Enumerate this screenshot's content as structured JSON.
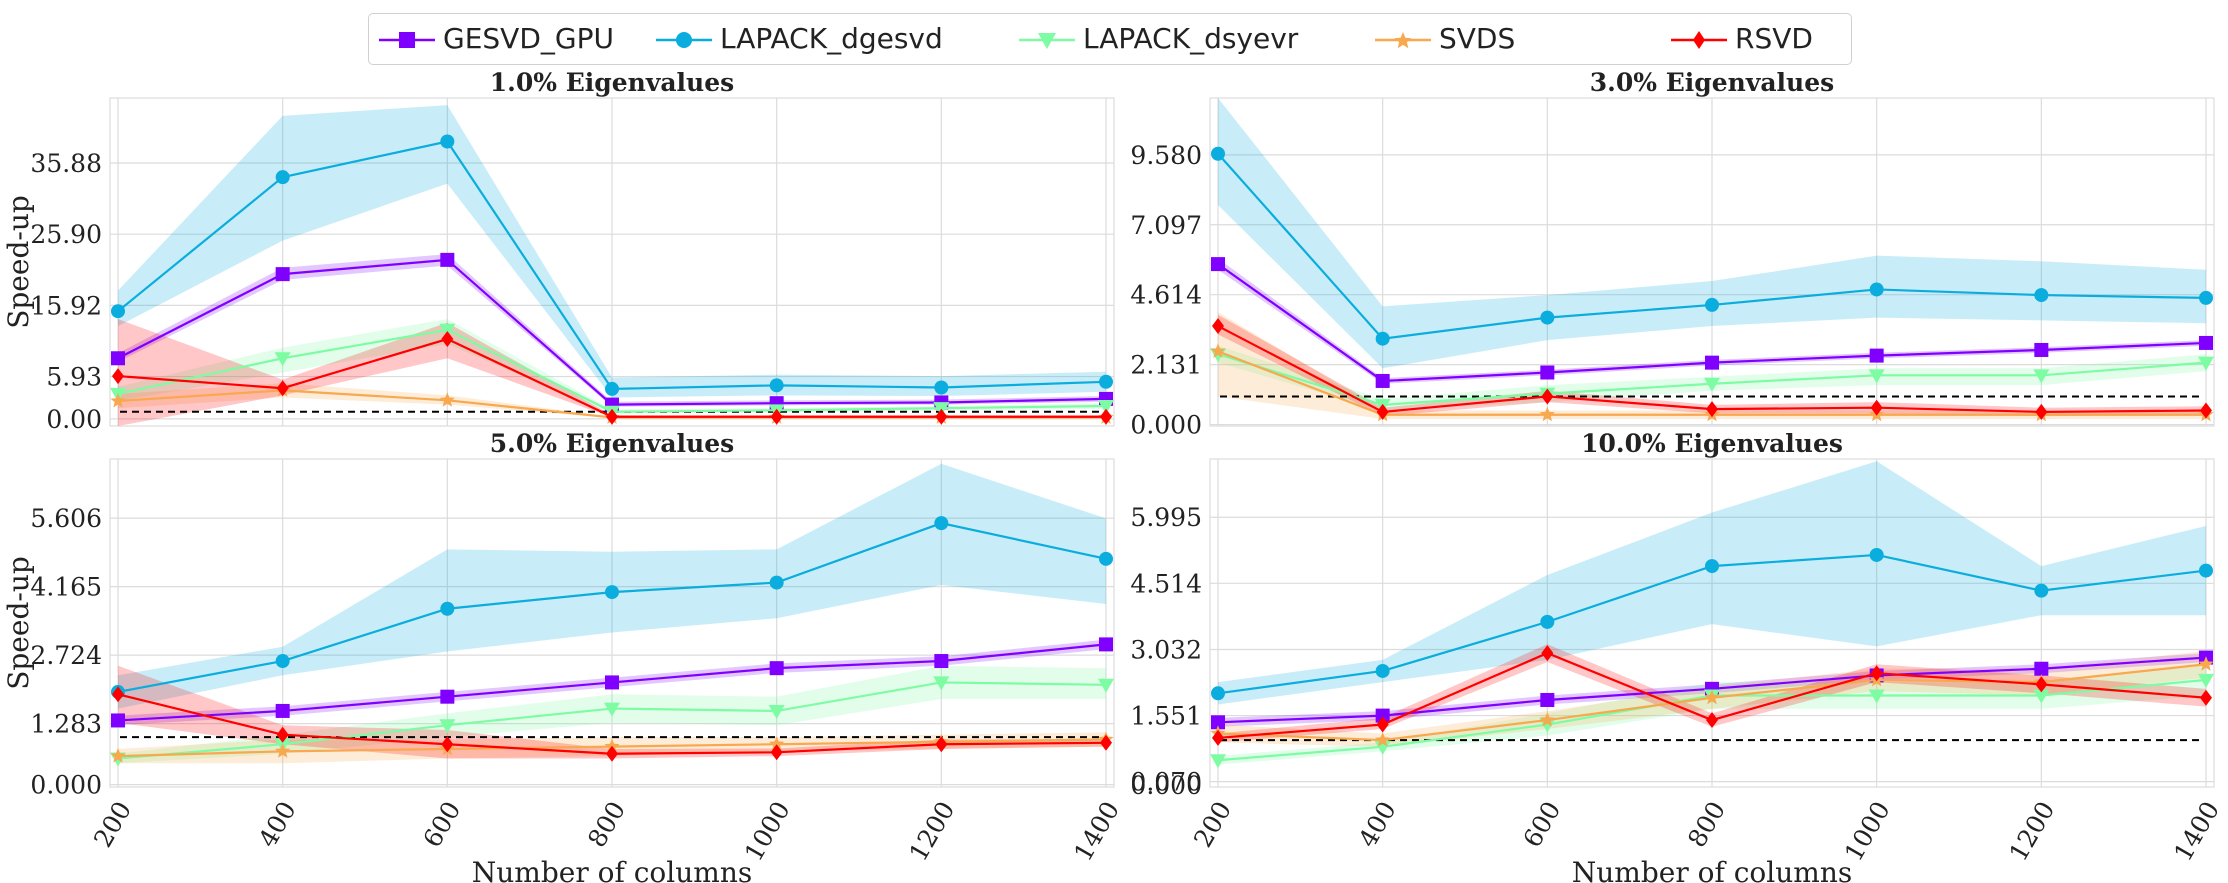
{
  "legend": {
    "items": [
      {
        "label": "GESVD_GPU",
        "color": "#8000ff",
        "marker": "square-marker-icon"
      },
      {
        "label": "LAPACK_dgesvd",
        "color": "#0aaddd",
        "marker": "circle-marker-icon"
      },
      {
        "label": "LAPACK_dsyevr",
        "color": "#7dfca3",
        "marker": "triangle-down-marker-icon"
      },
      {
        "label": "SVDS",
        "color": "#f8a84e",
        "marker": "star-marker-icon"
      },
      {
        "label": "RSVD",
        "color": "#ff0000",
        "marker": "diamond-marker-icon"
      }
    ]
  },
  "chart_data": [
    {
      "type": "line",
      "title": "1.0% Eigenvalues",
      "xlabel": "",
      "ylabel": "Speed-up",
      "x": [
        200,
        400,
        600,
        800,
        1000,
        1200,
        1400
      ],
      "xticks": [
        "200",
        "400",
        "600",
        "800",
        "1000",
        "1200",
        "1400"
      ],
      "yticks": [
        0.0,
        5.93,
        15.92,
        25.9,
        35.88
      ],
      "ytick_labels": [
        "0.00",
        "5.93",
        "15.92",
        "25.90",
        "35.88"
      ],
      "ylim": [
        -1.0,
        45.0
      ],
      "baseline": 1.0,
      "series": [
        {
          "name": "GESVD_GPU",
          "values": [
            8.5,
            20.3,
            22.3,
            2.0,
            2.2,
            2.3,
            2.8
          ],
          "lower": [
            8.0,
            19.5,
            21.5,
            1.7,
            1.9,
            2.0,
            2.4
          ],
          "upper": [
            9.2,
            21.2,
            23.1,
            2.4,
            2.6,
            2.7,
            3.2
          ]
        },
        {
          "name": "LAPACK_dgesvd",
          "values": [
            15.1,
            33.9,
            38.9,
            4.2,
            4.7,
            4.4,
            5.2
          ],
          "lower": [
            13.0,
            25.0,
            33.0,
            3.0,
            3.3,
            3.2,
            3.8
          ],
          "upper": [
            18.0,
            42.5,
            44.0,
            5.8,
            6.2,
            6.0,
            6.6
          ]
        },
        {
          "name": "LAPACK_dsyevr",
          "values": [
            3.5,
            8.5,
            12.5,
            1.0,
            1.2,
            1.5,
            1.8
          ],
          "lower": [
            2.5,
            6.5,
            10.5,
            0.7,
            0.9,
            1.2,
            1.4
          ],
          "upper": [
            4.5,
            10.0,
            14.0,
            1.3,
            1.5,
            1.8,
            2.2
          ]
        },
        {
          "name": "SVDS",
          "values": [
            2.5,
            4.0,
            2.6,
            0.2,
            0.2,
            0.2,
            0.2
          ],
          "lower": [
            1.5,
            3.0,
            2.0,
            0.1,
            0.1,
            0.1,
            0.1
          ],
          "upper": [
            3.5,
            5.0,
            3.3,
            0.3,
            0.3,
            0.3,
            0.3
          ]
        },
        {
          "name": "RSVD",
          "values": [
            6.0,
            4.3,
            11.2,
            0.3,
            0.3,
            0.3,
            0.3
          ],
          "lower": [
            -1.0,
            3.3,
            8.5,
            0.2,
            0.2,
            0.2,
            0.2
          ],
          "upper": [
            14.0,
            5.5,
            13.5,
            0.5,
            0.5,
            0.5,
            0.5
          ]
        }
      ]
    },
    {
      "type": "line",
      "title": "3.0% Eigenvalues",
      "xlabel": "",
      "ylabel": "",
      "x": [
        200,
        400,
        600,
        800,
        1000,
        1200,
        1400
      ],
      "xticks": [
        "200",
        "400",
        "600",
        "800",
        "1000",
        "1200",
        "1400"
      ],
      "yticks": [
        0.0,
        2.131,
        4.614,
        7.097,
        9.58
      ],
      "ytick_labels": [
        "0.000",
        "2.131",
        "4.614",
        "7.097",
        "9.580"
      ],
      "ylim": [
        -0.05,
        11.6
      ],
      "baseline": 1.0,
      "series": [
        {
          "name": "GESVD_GPU",
          "values": [
            5.7,
            1.55,
            1.85,
            2.2,
            2.45,
            2.65,
            2.9
          ],
          "lower": [
            5.5,
            1.45,
            1.75,
            2.1,
            2.35,
            2.55,
            2.8
          ],
          "upper": [
            5.9,
            1.65,
            1.95,
            2.3,
            2.55,
            2.75,
            3.0
          ]
        },
        {
          "name": "LAPACK_dgesvd",
          "values": [
            9.62,
            3.05,
            3.8,
            4.25,
            4.8,
            4.6,
            4.5
          ],
          "lower": [
            7.8,
            2.0,
            3.0,
            3.5,
            3.8,
            3.7,
            3.6
          ],
          "upper": [
            11.6,
            4.2,
            4.6,
            5.1,
            6.0,
            5.8,
            5.5
          ]
        },
        {
          "name": "LAPACK_dsyevr",
          "values": [
            2.5,
            0.7,
            1.1,
            1.45,
            1.75,
            1.75,
            2.2
          ],
          "lower": [
            2.2,
            0.5,
            0.8,
            1.2,
            1.4,
            1.4,
            1.9
          ],
          "upper": [
            2.8,
            0.9,
            1.4,
            1.7,
            2.0,
            2.0,
            2.5
          ]
        },
        {
          "name": "SVDS",
          "values": [
            2.6,
            0.35,
            0.35,
            0.35,
            0.35,
            0.35,
            0.35
          ],
          "lower": [
            1.0,
            0.2,
            0.2,
            0.2,
            0.2,
            0.2,
            0.2
          ],
          "upper": [
            4.0,
            0.5,
            0.5,
            0.5,
            0.5,
            0.5,
            0.5
          ]
        },
        {
          "name": "RSVD",
          "values": [
            3.5,
            0.45,
            1.0,
            0.55,
            0.6,
            0.45,
            0.5
          ],
          "lower": [
            3.2,
            0.3,
            0.8,
            0.4,
            0.4,
            0.3,
            0.35
          ],
          "upper": [
            3.9,
            0.6,
            1.2,
            0.7,
            0.8,
            0.6,
            0.65
          ]
        }
      ]
    },
    {
      "type": "line",
      "title": "5.0% Eigenvalues",
      "xlabel": "Number of columns",
      "ylabel": "Speed-up",
      "x": [
        200,
        400,
        600,
        800,
        1000,
        1200,
        1400
      ],
      "xticks": [
        "200",
        "400",
        "600",
        "800",
        "1000",
        "1200",
        "1400"
      ],
      "yticks": [
        0.0,
        1.283,
        2.724,
        4.165,
        5.606
      ],
      "ytick_labels": [
        "0.000",
        "1.283",
        "2.724",
        "4.165",
        "5.606"
      ],
      "ylim": [
        -0.05,
        6.85
      ],
      "baseline": 1.0,
      "series": [
        {
          "name": "GESVD_GPU",
          "values": [
            1.35,
            1.55,
            1.85,
            2.15,
            2.45,
            2.6,
            2.95
          ],
          "lower": [
            1.25,
            1.45,
            1.75,
            2.05,
            2.35,
            2.5,
            2.85
          ],
          "upper": [
            1.45,
            1.65,
            1.95,
            2.25,
            2.55,
            2.7,
            3.05
          ]
        },
        {
          "name": "LAPACK_dgesvd",
          "values": [
            1.95,
            2.6,
            3.7,
            4.05,
            4.25,
            5.5,
            4.75
          ],
          "lower": [
            1.6,
            2.3,
            2.8,
            3.2,
            3.5,
            4.2,
            3.8
          ],
          "upper": [
            2.3,
            2.9,
            4.95,
            4.9,
            4.95,
            6.75,
            5.6
          ]
        },
        {
          "name": "LAPACK_dsyevr",
          "values": [
            0.55,
            0.85,
            1.25,
            1.6,
            1.55,
            2.15,
            2.1
          ],
          "lower": [
            0.45,
            0.65,
            1.0,
            1.3,
            1.25,
            1.8,
            1.8
          ],
          "upper": [
            0.65,
            1.05,
            1.5,
            1.9,
            1.85,
            2.5,
            2.45
          ]
        },
        {
          "name": "SVDS",
          "values": [
            0.6,
            0.7,
            0.75,
            0.8,
            0.85,
            0.9,
            0.95
          ],
          "lower": [
            0.45,
            0.45,
            0.55,
            0.6,
            0.7,
            0.75,
            0.8
          ],
          "upper": [
            0.75,
            0.95,
            0.95,
            1.0,
            1.0,
            1.05,
            1.1
          ]
        },
        {
          "name": "RSVD",
          "values": [
            1.9,
            1.05,
            0.85,
            0.65,
            0.68,
            0.85,
            0.88
          ],
          "lower": [
            1.3,
            0.85,
            0.55,
            0.55,
            0.6,
            0.75,
            0.8
          ],
          "upper": [
            2.5,
            1.25,
            1.15,
            0.75,
            0.76,
            0.95,
            0.96
          ]
        }
      ]
    },
    {
      "type": "line",
      "title": "10.0% Eigenvalues",
      "xlabel": "Number of columns",
      "ylabel": "",
      "x": [
        200,
        400,
        600,
        800,
        1000,
        1200,
        1400
      ],
      "xticks": [
        "200",
        "400",
        "600",
        "800",
        "1000",
        "1200",
        "1400"
      ],
      "yticks": [
        0.07,
        1.551,
        3.032,
        4.514,
        5.995
      ],
      "ytick_labels": [
        "0.070",
        "1.551",
        "3.032",
        "4.514",
        "5.995"
      ],
      "extra_tick_labels": [
        {
          "value": 0.0,
          "label": "0.000"
        }
      ],
      "ylim": [
        -0.05,
        7.3
      ],
      "baseline": 1.0,
      "series": [
        {
          "name": "GESVD_GPU",
          "values": [
            1.4,
            1.55,
            1.9,
            2.15,
            2.45,
            2.6,
            2.85
          ],
          "lower": [
            1.3,
            1.45,
            1.8,
            2.05,
            2.35,
            2.5,
            2.75
          ],
          "upper": [
            1.5,
            1.65,
            2.0,
            2.25,
            2.55,
            2.7,
            2.95
          ]
        },
        {
          "name": "LAPACK_dgesvd",
          "values": [
            2.05,
            2.55,
            3.65,
            4.9,
            5.15,
            4.35,
            4.8
          ],
          "lower": [
            1.8,
            2.3,
            2.8,
            3.6,
            3.1,
            3.8,
            3.8
          ],
          "upper": [
            2.3,
            2.8,
            4.7,
            6.1,
            7.25,
            4.9,
            5.8
          ]
        },
        {
          "name": "LAPACK_dsyevr",
          "values": [
            0.55,
            0.85,
            1.35,
            2.0,
            2.0,
            2.0,
            2.35
          ],
          "lower": [
            0.45,
            0.75,
            1.1,
            1.7,
            1.7,
            1.7,
            2.0
          ],
          "upper": [
            0.65,
            0.95,
            1.6,
            2.3,
            2.3,
            2.3,
            2.7
          ]
        },
        {
          "name": "SVDS",
          "values": [
            1.15,
            1.0,
            1.45,
            1.95,
            2.35,
            2.3,
            2.7
          ],
          "lower": [
            0.95,
            0.85,
            1.25,
            1.7,
            2.1,
            2.0,
            2.4
          ],
          "upper": [
            1.35,
            1.15,
            1.65,
            2.2,
            2.6,
            2.6,
            3.0
          ]
        },
        {
          "name": "RSVD",
          "values": [
            1.05,
            1.35,
            2.95,
            1.45,
            2.5,
            2.25,
            1.95
          ],
          "lower": [
            0.95,
            1.25,
            2.75,
            1.3,
            2.3,
            2.05,
            1.75
          ],
          "upper": [
            1.15,
            1.5,
            3.15,
            1.6,
            2.7,
            2.45,
            2.15
          ]
        }
      ]
    }
  ]
}
